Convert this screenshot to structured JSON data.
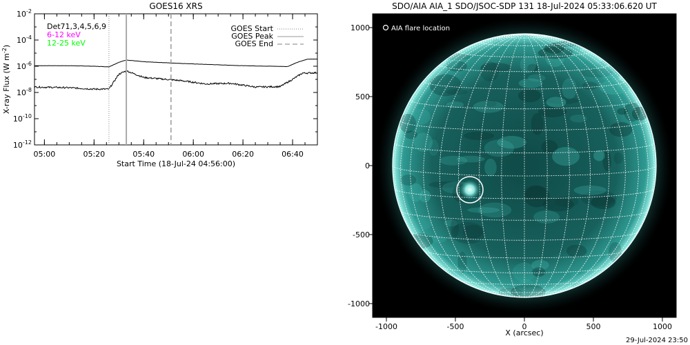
{
  "left_panel": {
    "title": "GOES16 XRS",
    "ylabel_prefix": "X-ray Flux (W m",
    "ylabel_exp": "-2",
    "ylabel_suffix": ")",
    "xlabel": "Start Time (18-Jul-24 04:56:00)",
    "annotations": [
      {
        "text": "Det71,3,4,5,6,9",
        "color": "#000000"
      },
      {
        "text": "6-12 keV",
        "color": "#ff00ff"
      },
      {
        "text": "12-25 keV",
        "color": "#00ff00"
      }
    ],
    "legend": [
      {
        "label": "GOES Start",
        "style": "dotted"
      },
      {
        "label": "GOES Peak",
        "style": "solid"
      },
      {
        "label": "GOES End",
        "style": "dashed"
      }
    ]
  },
  "right_panel": {
    "title": "SDO/AIA AIA_1 SDO/JSOC-SDP 131 18-Jul-2024 05:33:06.620 UT",
    "legend_label": "AIA flare location",
    "xlabel": "X (arcsec)",
    "footer_timestamp": "29-Jul-2024 23:50",
    "x_ticks": [
      "-1000",
      "-500",
      "0",
      "500",
      "1000"
    ],
    "y_ticks": [
      "1000",
      "500",
      "0",
      "-500",
      "-1000"
    ],
    "colors": {
      "background": "#000000",
      "disk": "#1c6e6a",
      "limb": "#9cf5ec",
      "grid": "#ffffff"
    }
  },
  "chart_data": [
    {
      "type": "line",
      "title": "GOES16 XRS",
      "ylabel": "X-ray Flux (W m^-2)",
      "xlabel": "Start Time (18-Jul-24 04:56:00)",
      "yscale": "log",
      "ylim_exp": [
        -12,
        -2
      ],
      "y_ticks": [
        {
          "base": "10",
          "exp": "-2"
        },
        {
          "base": "10",
          "exp": "-4"
        },
        {
          "base": "10",
          "exp": "-6"
        },
        {
          "base": "10",
          "exp": "-8"
        },
        {
          "base": "10",
          "exp": "-10"
        },
        {
          "base": "10",
          "exp": "-12"
        }
      ],
      "x_ticks": [
        "05:00",
        "05:20",
        "05:40",
        "06:00",
        "06:20",
        "06:40"
      ],
      "xlim": [
        "04:56",
        "06:50"
      ],
      "events": {
        "goes_start": "05:26",
        "goes_peak": "05:33",
        "goes_end": "05:51"
      },
      "series": [
        {
          "name": "upper",
          "color": "#000000",
          "points": [
            [
              "04:56",
              1.1e-06
            ],
            [
              "05:10",
              1.1e-06
            ],
            [
              "05:20",
              1e-06
            ],
            [
              "05:26",
              9e-07
            ],
            [
              "05:30",
              2e-06
            ],
            [
              "05:33",
              3e-06
            ],
            [
              "05:40",
              2.2e-06
            ],
            [
              "06:00",
              1.5e-06
            ],
            [
              "06:20",
              1.1e-06
            ],
            [
              "06:38",
              9.5e-07
            ],
            [
              "06:42",
              2e-06
            ],
            [
              "06:46",
              3.5e-06
            ],
            [
              "06:50",
              3.5e-06
            ]
          ]
        },
        {
          "name": "lower",
          "color": "#000000",
          "points": [
            [
              "04:56",
              2.6e-08
            ],
            [
              "05:10",
              2.3e-08
            ],
            [
              "05:20",
              1.8e-08
            ],
            [
              "05:26",
              1.8e-08
            ],
            [
              "05:30",
              2.5e-07
            ],
            [
              "05:33",
              4.5e-07
            ],
            [
              "05:40",
              1.4e-07
            ],
            [
              "05:55",
              8e-08
            ],
            [
              "06:05",
              4.5e-08
            ],
            [
              "06:15",
              5e-08
            ],
            [
              "06:25",
              2.6e-08
            ],
            [
              "06:35",
              2.8e-08
            ],
            [
              "06:40",
              1e-07
            ],
            [
              "06:44",
              3e-07
            ],
            [
              "06:50",
              3.2e-07
            ]
          ]
        }
      ]
    },
    {
      "type": "heatmap",
      "title": "SDO/AIA AIA_1 SDO/JSOC-SDP 131 18-Jul-2024 05:33:06.620 UT",
      "xlabel": "X (arcsec)",
      "xlim": [
        -1100,
        1100
      ],
      "ylim": [
        -1100,
        1100
      ],
      "solar_radius_arcsec": 955,
      "flare_location_arcsec": [
        -395,
        -175
      ],
      "flare_marker_radius_arcsec": 95
    }
  ]
}
